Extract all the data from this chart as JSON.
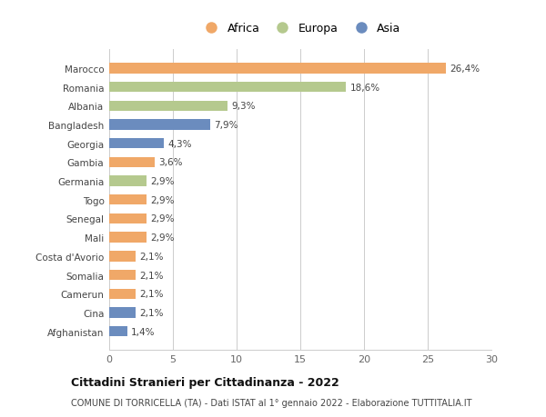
{
  "countries": [
    "Marocco",
    "Romania",
    "Albania",
    "Bangladesh",
    "Georgia",
    "Gambia",
    "Germania",
    "Togo",
    "Senegal",
    "Mali",
    "Costa d'Avorio",
    "Somalia",
    "Camerun",
    "Cina",
    "Afghanistan"
  ],
  "values": [
    26.4,
    18.6,
    9.3,
    7.9,
    4.3,
    3.6,
    2.9,
    2.9,
    2.9,
    2.9,
    2.1,
    2.1,
    2.1,
    2.1,
    1.4
  ],
  "labels": [
    "26,4%",
    "18,6%",
    "9,3%",
    "7,9%",
    "4,3%",
    "3,6%",
    "2,9%",
    "2,9%",
    "2,9%",
    "2,9%",
    "2,1%",
    "2,1%",
    "2,1%",
    "2,1%",
    "1,4%"
  ],
  "continent": [
    "Africa",
    "Europa",
    "Europa",
    "Asia",
    "Asia",
    "Africa",
    "Europa",
    "Africa",
    "Africa",
    "Africa",
    "Africa",
    "Africa",
    "Africa",
    "Asia",
    "Asia"
  ],
  "colors": {
    "Africa": "#F0A868",
    "Europa": "#B5C98E",
    "Asia": "#6B8CBE"
  },
  "legend_labels": [
    "Africa",
    "Europa",
    "Asia"
  ],
  "xlim": [
    0,
    30
  ],
  "xticks": [
    0,
    5,
    10,
    15,
    20,
    25,
    30
  ],
  "title": "Cittadini Stranieri per Cittadinanza - 2022",
  "subtitle": "COMUNE DI TORRICELLA (TA) - Dati ISTAT al 1° gennaio 2022 - Elaborazione TUTTITALIA.IT",
  "background_color": "#ffffff",
  "grid_color": "#cccccc",
  "bar_height": 0.55
}
